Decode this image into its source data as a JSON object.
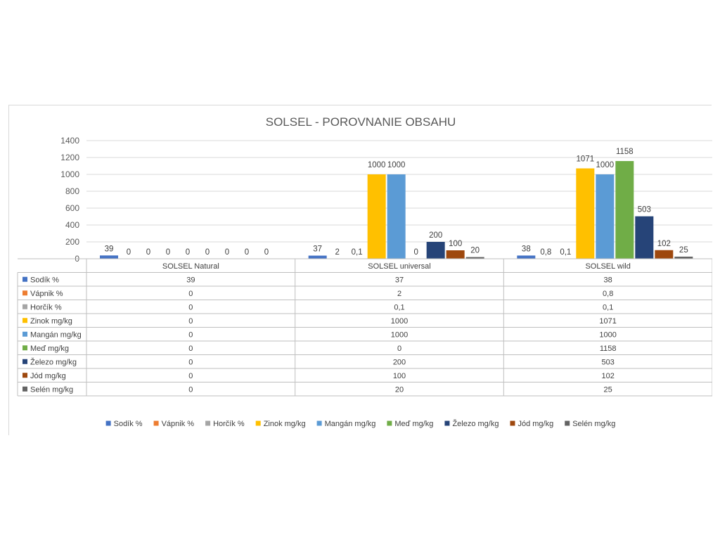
{
  "chart_data": {
    "type": "bar",
    "title": "SOLSEL - POROVNANIE OBSAHU",
    "categories": [
      "SOLSEL Natural",
      "SOLSEL universal",
      "SOLSEL wild"
    ],
    "ylim": [
      0,
      1400
    ],
    "yticks": [
      0,
      200,
      400,
      600,
      800,
      1000,
      1200,
      1400
    ],
    "grid": true,
    "legend_position": "bottom",
    "data_table": true,
    "series": [
      {
        "name": "Sodík %",
        "color": "#4472C4",
        "values": [
          39,
          37,
          38
        ],
        "labels": [
          "39",
          "37",
          "38"
        ]
      },
      {
        "name": "Vápnik %",
        "color": "#ED7D31",
        "values": [
          0,
          2,
          0.8
        ],
        "labels": [
          "0",
          "2",
          "0,8"
        ]
      },
      {
        "name": "Horčík %",
        "color": "#A5A5A5",
        "values": [
          0,
          0.1,
          0.1
        ],
        "labels": [
          "0",
          "0,1",
          "0,1"
        ]
      },
      {
        "name": "Zinok mg/kg",
        "color": "#FFC000",
        "values": [
          0,
          1000,
          1071
        ],
        "labels": [
          "0",
          "1000",
          "1071"
        ]
      },
      {
        "name": "Mangán mg/kg",
        "color": "#5B9BD5",
        "values": [
          0,
          1000,
          1000
        ],
        "labels": [
          "0",
          "1000",
          "1000"
        ]
      },
      {
        "name": "Meď mg/kg",
        "color": "#70AD47",
        "values": [
          0,
          0,
          1158
        ],
        "labels": [
          "0",
          "0",
          "1158"
        ]
      },
      {
        "name": "Železo mg/kg",
        "color": "#264478",
        "values": [
          0,
          200,
          503
        ],
        "labels": [
          "0",
          "200",
          "503"
        ]
      },
      {
        "name": "Jód mg/kg",
        "color": "#9E480E",
        "values": [
          0,
          100,
          102
        ],
        "labels": [
          "0",
          "100",
          "102"
        ]
      },
      {
        "name": "Selén mg/kg",
        "color": "#636363",
        "values": [
          0,
          20,
          25
        ],
        "labels": [
          "0",
          "20",
          "25"
        ]
      }
    ]
  }
}
